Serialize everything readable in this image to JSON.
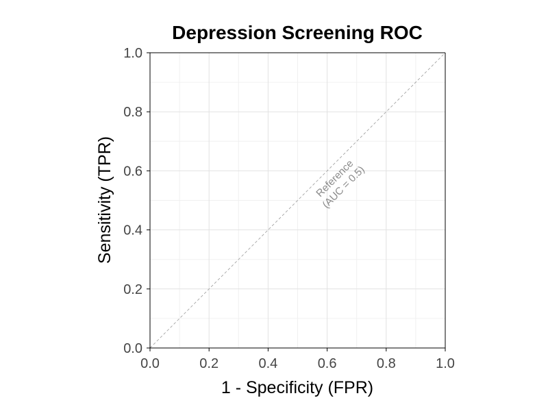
{
  "chart_data": {
    "type": "line",
    "title": "Depression Screening ROC",
    "xlabel": "1 - Specificity (FPR)",
    "ylabel": "Sensitivity (TPR)",
    "xlim": [
      0,
      1
    ],
    "ylim": [
      0,
      1
    ],
    "x_ticks": [
      0.0,
      0.2,
      0.4,
      0.6,
      0.8,
      1.0
    ],
    "y_ticks": [
      0.0,
      0.2,
      0.4,
      0.6,
      0.8,
      1.0
    ],
    "x_tick_labels": [
      "0.0",
      "0.2",
      "0.4",
      "0.6",
      "0.8",
      "1.0"
    ],
    "y_tick_labels": [
      "0.0",
      "0.2",
      "0.4",
      "0.6",
      "0.8",
      "1.0"
    ],
    "grid": true,
    "series": [
      {
        "style": "dashed",
        "color": "#9a9a9a",
        "x": [
          0,
          1
        ],
        "y": [
          0,
          1
        ]
      }
    ],
    "annotations": [
      {
        "lines": [
          "Reference",
          "(AUC = 0.5)"
        ],
        "x": 0.64,
        "y": 0.56,
        "color": "#8a8a8a"
      }
    ]
  }
}
